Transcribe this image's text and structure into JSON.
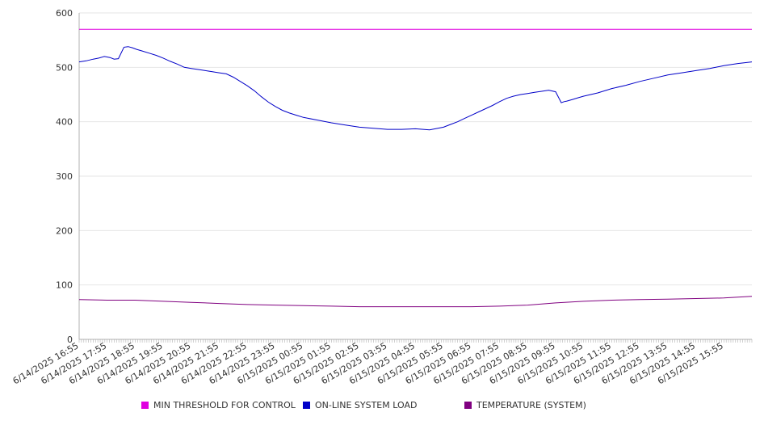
{
  "chart_data": {
    "type": "line",
    "ylim": [
      0,
      600
    ],
    "y_ticks": [
      0,
      100,
      200,
      300,
      400,
      500,
      600
    ],
    "x_tick_labels": [
      "6/14/2025 16:55",
      "6/14/2025 17:55",
      "6/14/2025 18:55",
      "6/14/2025 19:55",
      "6/14/2025 20:55",
      "6/14/2025 21:55",
      "6/14/2025 22:55",
      "6/14/2025 23:55",
      "6/15/2025 00:55",
      "6/15/2025 01:55",
      "6/15/2025 02:55",
      "6/15/2025 03:55",
      "6/15/2025 04:55",
      "6/15/2025 05:55",
      "6/15/2025 06:55",
      "6/15/2025 07:55",
      "6/15/2025 08:55",
      "6/15/2025 09:55",
      "6/15/2025 10:55",
      "6/15/2025 11:55",
      "6/15/2025 12:55",
      "6/15/2025 13:55",
      "6/15/2025 14:55",
      "6/15/2025 15:55"
    ],
    "x_hours": [
      0,
      1,
      2,
      3,
      4,
      5,
      6,
      7,
      8,
      9,
      10,
      11,
      12,
      13,
      14,
      15,
      16,
      17,
      18,
      19,
      20,
      21,
      22,
      23
    ],
    "x_range_hours": [
      0,
      24
    ],
    "grid": true,
    "legend_position": "bottom",
    "series": [
      {
        "name": "MIN THRESHOLD FOR CONTROL",
        "color": "#e000e0",
        "x": [
          0,
          24
        ],
        "values": [
          570,
          570
        ]
      },
      {
        "name": "ON-LINE SYSTEM LOAD",
        "color": "#0000c8",
        "x": [
          0,
          0.25,
          0.5,
          0.7,
          0.9,
          1.1,
          1.25,
          1.4,
          1.6,
          1.75,
          1.9,
          2.05,
          2.25,
          2.5,
          2.75,
          3.0,
          3.25,
          3.5,
          3.75,
          4.0,
          4.25,
          4.5,
          4.75,
          5.0,
          5.25,
          5.5,
          5.75,
          6.0,
          6.25,
          6.5,
          6.75,
          7.0,
          7.25,
          7.5,
          7.75,
          8.0,
          8.5,
          9.0,
          9.5,
          10.0,
          10.5,
          11.0,
          11.5,
          12.0,
          12.5,
          13.0,
          13.25,
          13.5,
          13.75,
          14.0,
          14.25,
          14.5,
          14.75,
          15.0,
          15.25,
          15.5,
          15.75,
          16.0,
          16.25,
          16.5,
          16.75,
          17.0,
          17.2,
          17.3,
          17.4,
          17.6,
          17.8,
          18.0,
          18.5,
          19.0,
          19.5,
          20.0,
          20.5,
          21.0,
          21.5,
          22.0,
          22.5,
          23.0,
          23.5,
          24.0
        ],
        "values": [
          510,
          512,
          515,
          517,
          520,
          518,
          515,
          516,
          537,
          538,
          536,
          533,
          530,
          526,
          522,
          517,
          511,
          506,
          500,
          498,
          496,
          494,
          492,
          490,
          488,
          482,
          474,
          466,
          457,
          446,
          436,
          428,
          421,
          416,
          412,
          408,
          403,
          398,
          394,
          390,
          388,
          386,
          386,
          387,
          385,
          390,
          395,
          400,
          406,
          412,
          418,
          424,
          430,
          437,
          443,
          447,
          450,
          452,
          454,
          456,
          458,
          455,
          435,
          437,
          438,
          441,
          444,
          447,
          453,
          461,
          467,
          474,
          480,
          486,
          490,
          494,
          498,
          503,
          507,
          510
        ]
      },
      {
        "name": "TEMPERATURE (SYSTEM)",
        "color": "#800080",
        "x": [
          0,
          1,
          2,
          3,
          4,
          5,
          6,
          7,
          8,
          9,
          10,
          11,
          12,
          13,
          14,
          15,
          16,
          17,
          18,
          19,
          20,
          21,
          22,
          23,
          24
        ],
        "values": [
          73,
          72,
          72,
          70,
          68,
          66,
          64,
          63,
          62,
          61,
          60,
          60,
          60,
          60,
          60,
          61,
          63,
          67,
          70,
          72,
          73,
          74,
          75,
          76,
          79
        ]
      }
    ]
  }
}
